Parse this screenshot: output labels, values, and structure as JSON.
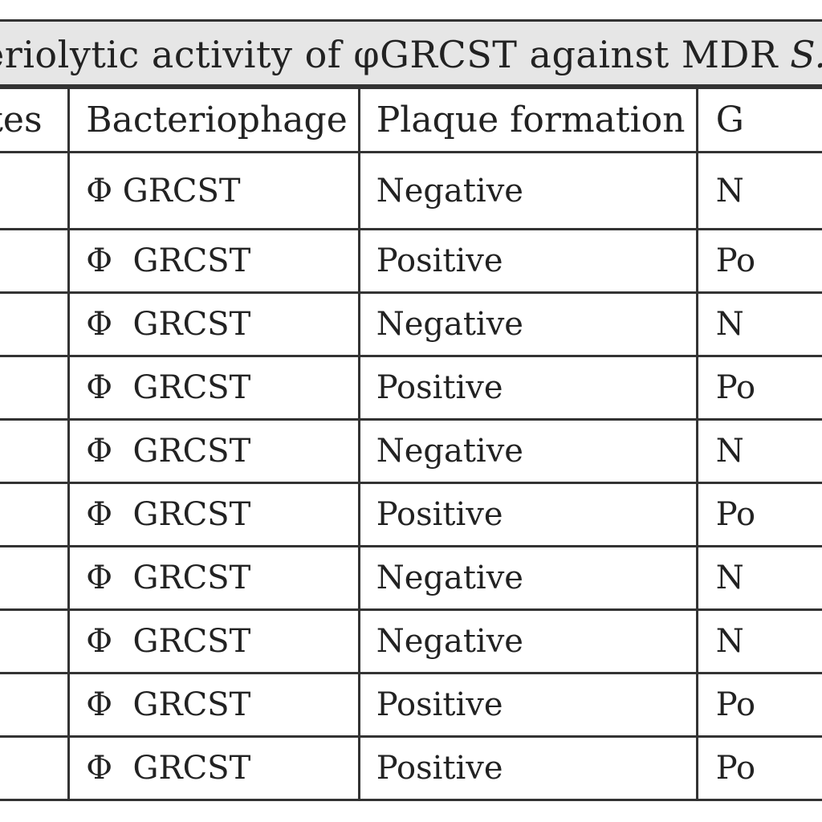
{
  "title": {
    "text_visible": "eriolytic activity of φGRCST against MDR ",
    "text_italic": "S. typ"
  },
  "table": {
    "headers": [
      "ates",
      "Bacteriophage",
      "Plaque formation",
      "G"
    ],
    "rows": [
      {
        "isolate": "",
        "phage": "Φ GRCST",
        "plaque": "Negative",
        "g": "N"
      },
      {
        "isolate": "",
        "phage": "Φ  GRCST",
        "plaque": "Positive",
        "g": "Po"
      },
      {
        "isolate": "",
        "phage": "Φ  GRCST",
        "plaque": "Negative",
        "g": "N"
      },
      {
        "isolate": "",
        "phage": "Φ  GRCST",
        "plaque": "Positive",
        "g": "Po"
      },
      {
        "isolate": "",
        "phage": "Φ  GRCST",
        "plaque": "Negative",
        "g": "N"
      },
      {
        "isolate": "",
        "phage": "Φ  GRCST",
        "plaque": "Positive",
        "g": "Po"
      },
      {
        "isolate": "",
        "phage": "Φ  GRCST",
        "plaque": "Negative",
        "g": "N"
      },
      {
        "isolate": "",
        "phage": "Φ  GRCST",
        "plaque": "Negative",
        "g": "N"
      },
      {
        "isolate": "",
        "phage": "Φ  GRCST",
        "plaque": "Positive",
        "g": "Po"
      },
      {
        "isolate": "",
        "phage": "Φ  GRCST",
        "plaque": "Positive",
        "g": "Po"
      }
    ]
  }
}
